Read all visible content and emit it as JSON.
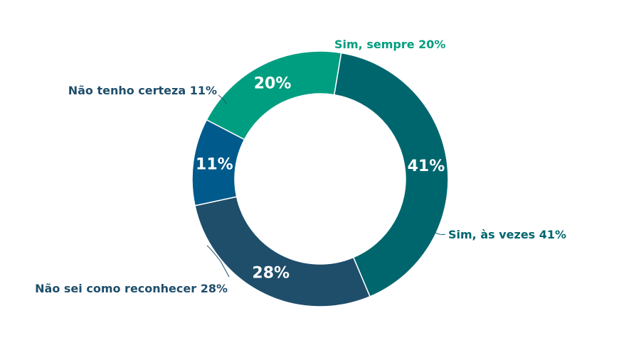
{
  "chart_data": {
    "type": "pie",
    "donut": true,
    "legend": "none",
    "slices": [
      {
        "name": "Sim, sempre",
        "value": 20,
        "pct_label": "20%",
        "ext_label": "Sim, sempre 20%",
        "color": "#009E80",
        "text_color": "#009E80"
      },
      {
        "name": "Sim, às vezes",
        "value": 41,
        "pct_label": "41%",
        "ext_label": "Sim, às vezes 41%",
        "color": "#00666E",
        "text_color": "#00666E"
      },
      {
        "name": "Não sei como reconhecer",
        "value": 28,
        "pct_label": "28%",
        "ext_label": "Não sei como reconhecer 28%",
        "color": "#1F4E6B",
        "text_color": "#1F4E6B"
      },
      {
        "name": "Não tenho certeza",
        "value": 11,
        "pct_label": "11%",
        "ext_label": "Não tenho certeza 11%",
        "color": "#005A8C",
        "text_color": "#1F4E6B"
      }
    ]
  }
}
